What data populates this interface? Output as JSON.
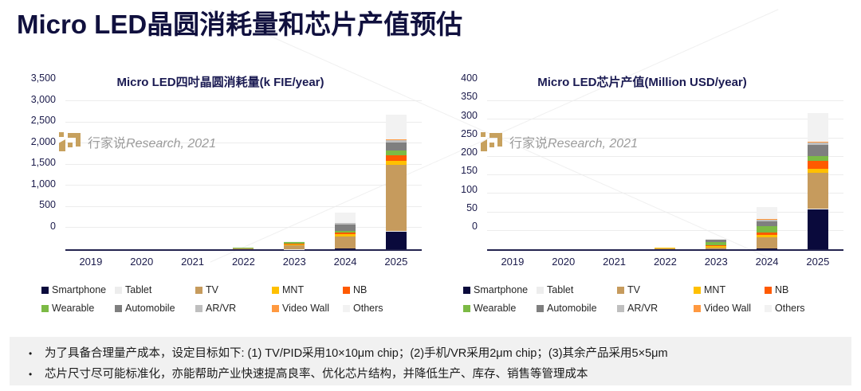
{
  "page_title": "Micro LED晶圆消耗量和芯片产值预估",
  "watermark": {
    "cn": "行家说",
    "en": "Research, 2021",
    "logo": "hangjiashuo-logo",
    "gold": "#C7A15E",
    "text_color": "#9B9B9B"
  },
  "colors": {
    "title": "#10103E",
    "axis_label": "#1B1B4B",
    "axis_line": "#23234F",
    "gridline": "#ECECEC",
    "notes_bg": "#F1F1F1"
  },
  "chart_data": [
    {
      "type": "bar",
      "stacked": true,
      "title": "Micro LED四吋晶圆消耗量(k FIE/year)",
      "categories": [
        "2019",
        "2020",
        "2021",
        "2022",
        "2023",
        "2024",
        "2025"
      ],
      "ylim": [
        0,
        3500
      ],
      "yticks": [
        "0",
        "500",
        "1,000",
        "1,500",
        "2,000",
        "2,500",
        "3,000",
        "3,500"
      ],
      "grid": true,
      "legend_position": "bottom",
      "series": [
        {
          "name": "Smartphone",
          "color": "#0A0A3C",
          "values": [
            0,
            0,
            0,
            0,
            0,
            15,
            420
          ]
        },
        {
          "name": "Tablet",
          "color": "#EDEDED",
          "values": [
            0,
            0,
            0,
            0,
            2,
            5,
            10
          ]
        },
        {
          "name": "TV",
          "color": "#C69B5D",
          "values": [
            0,
            0,
            1,
            20,
            90,
            290,
            1560
          ]
        },
        {
          "name": "MNT",
          "color": "#FFC000",
          "values": [
            0,
            0,
            0,
            2,
            25,
            40,
            95
          ]
        },
        {
          "name": "NB",
          "color": "#FF5A00",
          "values": [
            0,
            0,
            0,
            5,
            15,
            50,
            130
          ]
        },
        {
          "name": "Wearable",
          "color": "#7CBA45",
          "values": [
            0,
            0,
            0,
            2,
            30,
            40,
            115
          ]
        },
        {
          "name": "Automobile",
          "color": "#7F7F7F",
          "values": [
            0,
            0,
            0,
            1,
            10,
            135,
            195
          ]
        },
        {
          "name": "AR/VR",
          "color": "#BFBFBF",
          "values": [
            0,
            0,
            0,
            0,
            3,
            40,
            50
          ]
        },
        {
          "name": "Video Wall",
          "color": "#FF9940",
          "values": [
            0,
            0,
            0,
            0,
            2,
            5,
            15
          ]
        },
        {
          "name": "Others",
          "color": "#F2F2F2",
          "values": [
            0,
            0,
            0,
            1,
            5,
            250,
            600
          ]
        }
      ]
    },
    {
      "type": "bar",
      "stacked": true,
      "title": "Micro LED芯片产值(Million USD/year)",
      "categories": [
        "2019",
        "2020",
        "2021",
        "2022",
        "2023",
        "2024",
        "2025"
      ],
      "ylim": [
        0,
        400
      ],
      "yticks": [
        "0",
        "50",
        "100",
        "150",
        "200",
        "250",
        "300",
        "350",
        "400"
      ],
      "grid": true,
      "legend_position": "bottom",
      "series": [
        {
          "name": "Smartphone",
          "color": "#0A0A3C",
          "values": [
            0,
            0,
            0,
            0,
            0,
            2,
            108
          ]
        },
        {
          "name": "Tablet",
          "color": "#EDEDED",
          "values": [
            0,
            0,
            0,
            0,
            0,
            0,
            2
          ]
        },
        {
          "name": "TV",
          "color": "#C69B5D",
          "values": [
            0,
            0,
            0,
            3,
            5,
            31,
            97
          ]
        },
        {
          "name": "MNT",
          "color": "#FFC000",
          "values": [
            0,
            0,
            0,
            0.5,
            4,
            6,
            11
          ]
        },
        {
          "name": "NB",
          "color": "#FF5A00",
          "values": [
            0,
            0,
            0,
            0,
            1,
            6,
            20
          ]
        },
        {
          "name": "Wearable",
          "color": "#7CBA45",
          "values": [
            0,
            0,
            0,
            0.5,
            9,
            17,
            14
          ]
        },
        {
          "name": "Automobile",
          "color": "#7F7F7F",
          "values": [
            0,
            0,
            0,
            0,
            6,
            14,
            29
          ]
        },
        {
          "name": "AR/VR",
          "color": "#BFBFBF",
          "values": [
            0,
            0,
            0,
            0,
            1,
            4,
            7
          ]
        },
        {
          "name": "Video Wall",
          "color": "#FF9940",
          "values": [
            0,
            0,
            0,
            0,
            0,
            1,
            3
          ]
        },
        {
          "name": "Others",
          "color": "#F2F2F2",
          "values": [
            0,
            0,
            0,
            0,
            3,
            34,
            77
          ]
        }
      ]
    }
  ],
  "notes": {
    "bullet": "•",
    "items": [
      "为了具备合理量产成本，设定目标如下: (1) TV/PID采用10×10μm chip；(2)手机/VR采用2μm chip；(3)其余产品采用5×5μm",
      "芯片尺寸尽可能标准化，亦能帮助产业快速提高良率、优化芯片结构，并降低生产、库存、销售等管理成本"
    ]
  }
}
